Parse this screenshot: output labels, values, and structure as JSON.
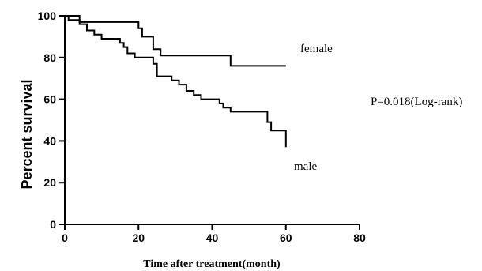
{
  "chart_data": {
    "type": "line",
    "title": "",
    "xlabel": "Time after treatment(month)",
    "ylabel": "Percent survival",
    "xlim": [
      0,
      80
    ],
    "ylim": [
      0,
      100
    ],
    "xticks": [
      "0",
      "20",
      "40",
      "60",
      "80"
    ],
    "yticks": [
      "0",
      "20",
      "40",
      "60",
      "80",
      "100"
    ],
    "grid": false,
    "step": true,
    "annotation": "P=0.018(Log-rank)",
    "series": [
      {
        "name": "female",
        "color": "#000000",
        "points": [
          [
            0,
            100
          ],
          [
            4,
            100
          ],
          [
            4,
            97
          ],
          [
            20,
            97
          ],
          [
            20,
            94
          ],
          [
            21,
            94
          ],
          [
            21,
            90
          ],
          [
            24,
            90
          ],
          [
            24,
            84
          ],
          [
            26,
            84
          ],
          [
            26,
            81
          ],
          [
            45,
            81
          ],
          [
            45,
            76
          ],
          [
            60,
            76
          ]
        ]
      },
      {
        "name": "male",
        "color": "#000000",
        "points": [
          [
            0,
            100
          ],
          [
            1,
            100
          ],
          [
            1,
            98
          ],
          [
            4,
            98
          ],
          [
            4,
            96
          ],
          [
            6,
            96
          ],
          [
            6,
            93
          ],
          [
            8,
            93
          ],
          [
            8,
            91
          ],
          [
            10,
            91
          ],
          [
            10,
            89
          ],
          [
            15,
            89
          ],
          [
            15,
            87
          ],
          [
            16,
            87
          ],
          [
            16,
            85
          ],
          [
            17,
            85
          ],
          [
            17,
            82
          ],
          [
            19,
            82
          ],
          [
            19,
            80
          ],
          [
            24,
            80
          ],
          [
            24,
            77
          ],
          [
            25,
            77
          ],
          [
            25,
            71
          ],
          [
            29,
            71
          ],
          [
            29,
            69
          ],
          [
            31,
            69
          ],
          [
            31,
            67
          ],
          [
            33,
            67
          ],
          [
            33,
            64
          ],
          [
            35,
            64
          ],
          [
            35,
            62
          ],
          [
            37,
            62
          ],
          [
            37,
            60
          ],
          [
            42,
            60
          ],
          [
            42,
            58
          ],
          [
            43,
            58
          ],
          [
            43,
            56
          ],
          [
            45,
            56
          ],
          [
            45,
            54
          ],
          [
            55,
            54
          ],
          [
            55,
            49
          ],
          [
            56,
            49
          ],
          [
            56,
            45
          ],
          [
            60,
            45
          ],
          [
            60,
            37
          ]
        ]
      }
    ]
  }
}
